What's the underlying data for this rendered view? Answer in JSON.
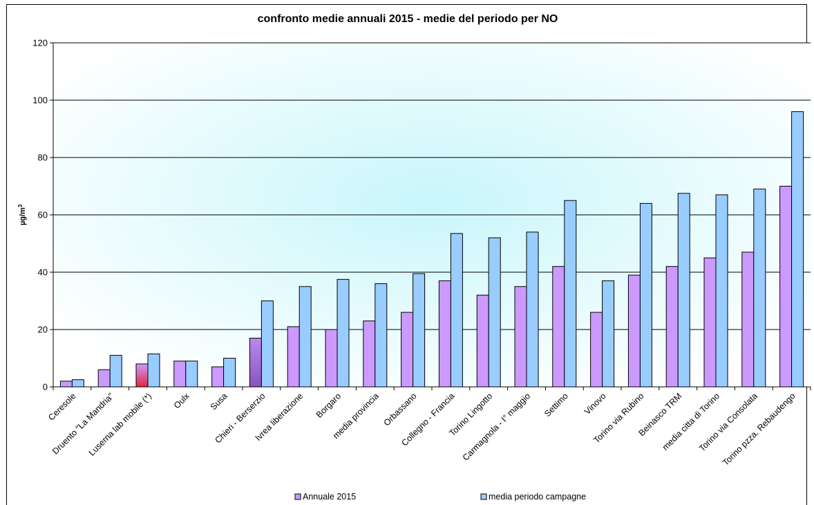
{
  "chart_data": {
    "type": "bar",
    "title": "confronto medie annuali 2015 - medie del periodo per NO",
    "ylabel": "µg/m",
    "ylabel_superscript": "3",
    "ylim": [
      0,
      120
    ],
    "yticks": [
      0,
      20,
      40,
      60,
      80,
      100,
      120
    ],
    "grid": "horizontal",
    "legend_position": "bottom",
    "categories": [
      "Ceresole",
      "Druento \"La Mandria\"",
      "Luserna lab mobile (*)",
      "Oulx",
      "Susa",
      "Chieri - Berserzio",
      "Ivrea liberazione",
      "Borgaro",
      "media provincia",
      "Orbassano",
      "Collegno - Francia",
      "Torino Lingotto",
      "Carmagnola - I° maggio",
      "Settimo",
      "Vinovo",
      "Torino via Rubino",
      "Beinasco TRM",
      "media citta di Torino",
      "Torino via Consolata",
      "Torino pzza. Rebaudengo"
    ],
    "series": [
      {
        "name": "Annuale 2015",
        "color": "#cc99ff",
        "values": [
          2,
          6,
          8,
          9,
          7,
          17,
          21,
          20,
          23,
          26,
          37,
          32,
          35,
          42,
          26,
          39,
          42,
          45,
          47,
          70
        ]
      },
      {
        "name": "media periodo campagne",
        "color": "#99ccff",
        "values": [
          2.5,
          11,
          11.5,
          9,
          10,
          30,
          35,
          37.5,
          36,
          39.5,
          53.5,
          52,
          54,
          65,
          37,
          64,
          67.5,
          67,
          69,
          96
        ]
      }
    ],
    "highlight_bars": [
      {
        "category_index": 2,
        "series_index": 0,
        "color": "#e8243c"
      },
      {
        "category_index": 5,
        "series_index": 0,
        "color": "#9966cc"
      }
    ]
  }
}
